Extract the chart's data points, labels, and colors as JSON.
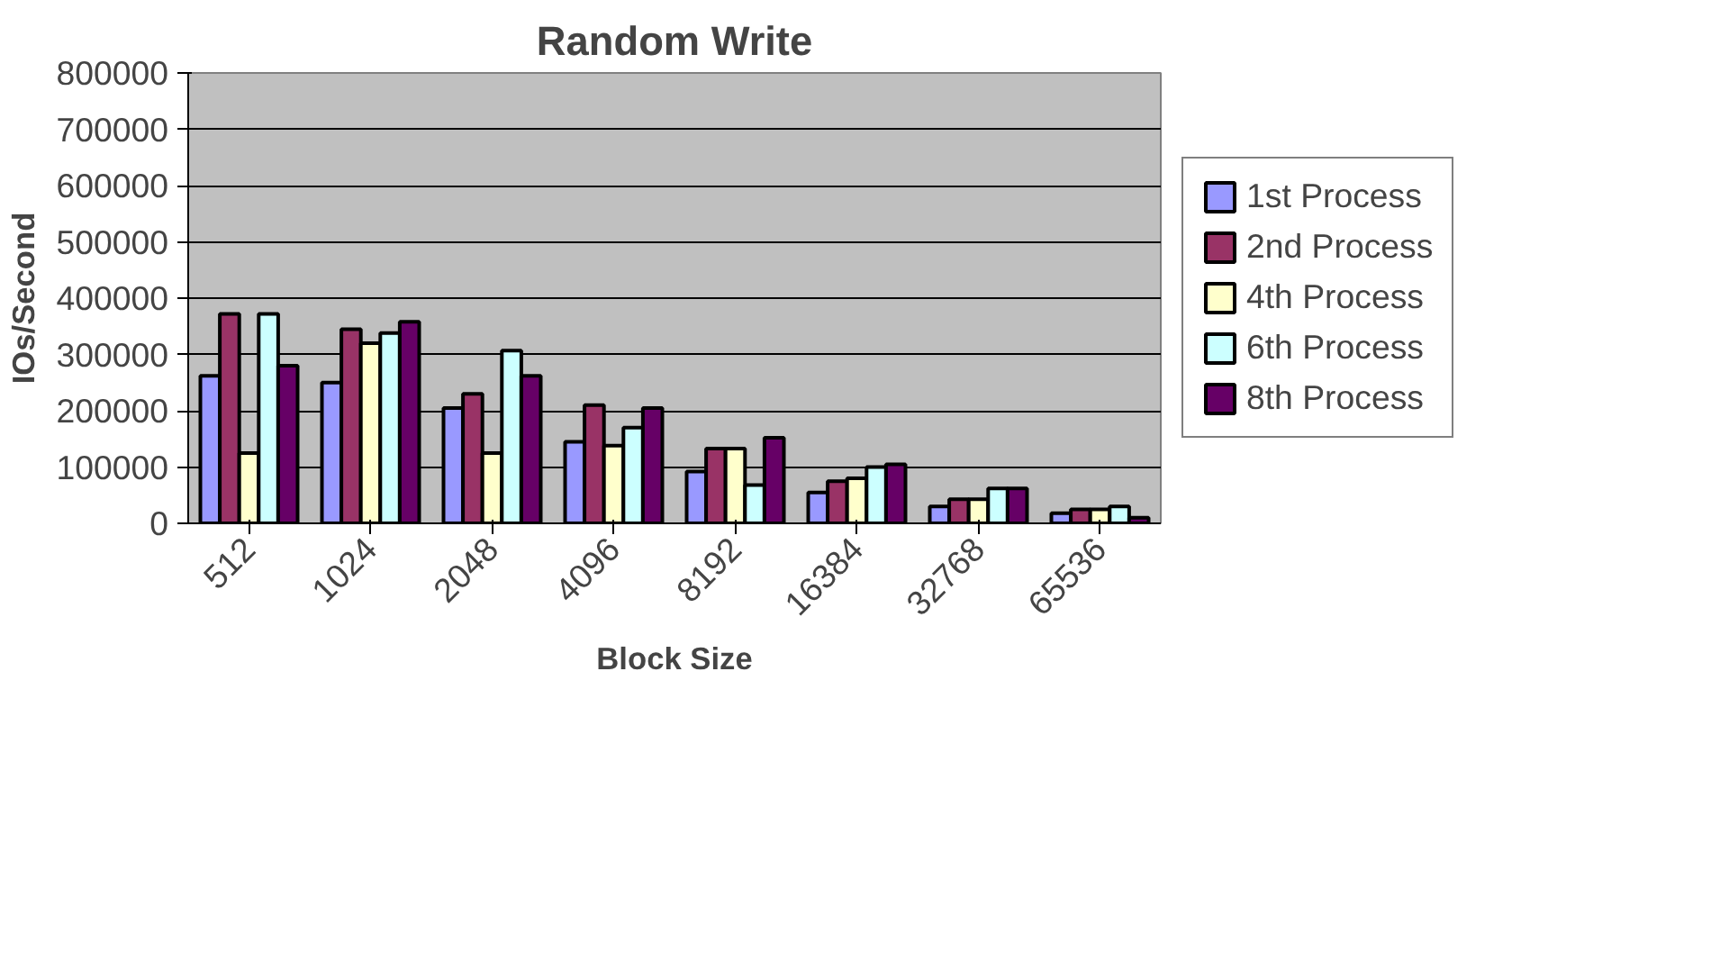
{
  "chart_data": {
    "type": "bar",
    "title": "Random Write",
    "xlabel": "Block Size",
    "ylabel": "IOs/Second",
    "categories": [
      "512",
      "1024",
      "2048",
      "4096",
      "8192",
      "16384",
      "32768",
      "65536"
    ],
    "ylim": [
      0,
      800000
    ],
    "yticks": [
      0,
      100000,
      200000,
      300000,
      400000,
      500000,
      600000,
      700000,
      800000
    ],
    "grid": "y",
    "legend": "right",
    "series": [
      {
        "name": "1st Process",
        "color": "#9999ff",
        "values": [
          262000,
          250000,
          205000,
          145000,
          92000,
          55000,
          30000,
          18000
        ]
      },
      {
        "name": "2nd Process",
        "color": "#993366",
        "values": [
          372000,
          345000,
          230000,
          210000,
          133000,
          75000,
          43000,
          25000
        ]
      },
      {
        "name": "4th Process",
        "color": "#ffffcc",
        "values": [
          125000,
          320000,
          125000,
          138000,
          133000,
          80000,
          43000,
          25000
        ]
      },
      {
        "name": "6th Process",
        "color": "#ccffff",
        "values": [
          372000,
          338000,
          307000,
          170000,
          68000,
          100000,
          62000,
          30000
        ]
      },
      {
        "name": "8th Process",
        "color": "#660066",
        "values": [
          280000,
          358000,
          262000,
          205000,
          152000,
          105000,
          62000,
          10000
        ]
      }
    ]
  }
}
